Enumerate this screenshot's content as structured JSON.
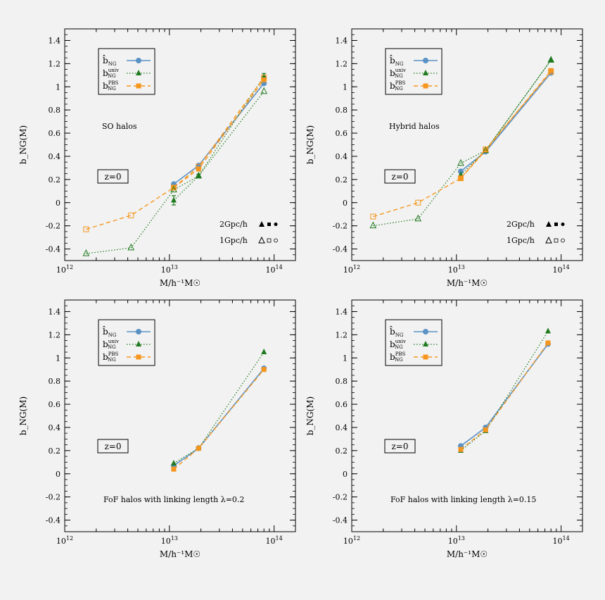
{
  "colors": {
    "hat": "#5b92c6",
    "univ": "#1f7a1f",
    "pbs": "#f5961e",
    "axis": "#000000",
    "background": "#f2f2f2"
  },
  "legend_labels": {
    "hat": {
      "base": "b̂",
      "sub": "NG",
      "sup": ""
    },
    "univ": {
      "base": "b",
      "sub": "NG",
      "sup": "univ"
    },
    "pbs": {
      "base": "b",
      "sub": "NG",
      "sup": "PBS"
    }
  },
  "axis_labels": {
    "x": "M/h⁻¹M☉",
    "y": "b_NG(M)"
  },
  "chart_data": [
    {
      "type": "line",
      "panel": "top-left",
      "title": "SO halos",
      "redshift_label": "z=0",
      "box_sizes": {
        "large": "2Gpc/h",
        "small": "1Gpc/h"
      },
      "x_scale": "log",
      "xlim": [
        1000000000000.0,
        160000000000000.0
      ],
      "ylim": [
        -0.5,
        1.5
      ],
      "x_tick_labels": [
        "10^12",
        "10^13",
        "10^14"
      ],
      "y_tick_labels": [
        "-0.4",
        "-0.2",
        "0",
        "0.2",
        "0.4",
        "0.6",
        "0.8",
        "1",
        "1.2",
        "1.4"
      ],
      "series": [
        {
          "name": "hat",
          "style": "solid",
          "marker": "circle",
          "x": [
            11000000000000.0,
            19000000000000.0,
            80000000000000.0
          ],
          "y": [
            0.16,
            0.32,
            1.03
          ]
        },
        {
          "name": "univ",
          "style": "dotted",
          "marker": "triangle",
          "x": [
            11000000000000.0,
            19000000000000.0,
            80000000000000.0
          ],
          "y": [
            0.02,
            0.23,
            1.09
          ],
          "err": [
            0.04,
            0.015,
            0.025
          ]
        },
        {
          "name": "pbs",
          "style": "dashed",
          "marker": "square",
          "x": [
            11000000000000.0,
            19000000000000.0,
            80000000000000.0
          ],
          "y": [
            0.13,
            0.29,
            1.06
          ]
        },
        {
          "name": "univ_small",
          "style": "dotted",
          "marker": "triangle-open",
          "x": [
            1600000000000.0,
            4300000000000.0,
            11000000000000.0,
            19000000000000.0,
            80000000000000.0
          ],
          "y": [
            -0.44,
            -0.39,
            0.11,
            0.23,
            0.96
          ]
        },
        {
          "name": "pbs_small",
          "style": "dashed",
          "marker": "square-open",
          "x": [
            1600000000000.0,
            4300000000000.0,
            11000000000000.0,
            19000000000000.0,
            80000000000000.0
          ],
          "y": [
            -0.23,
            -0.11,
            0.13,
            0.31,
            1.08
          ]
        }
      ]
    },
    {
      "type": "line",
      "panel": "top-right",
      "title": "Hybrid halos",
      "redshift_label": "z=0",
      "box_sizes": {
        "large": "2Gpc/h",
        "small": "1Gpc/h"
      },
      "x_scale": "log",
      "xlim": [
        1000000000000.0,
        160000000000000.0
      ],
      "ylim": [
        -0.5,
        1.5
      ],
      "x_tick_labels": [
        "10^12",
        "10^13",
        "10^14"
      ],
      "y_tick_labels": [
        "-0.4",
        "-0.2",
        "0",
        "0.2",
        "0.4",
        "0.6",
        "0.8",
        "1",
        "1.2",
        "1.4"
      ],
      "series": [
        {
          "name": "hat",
          "style": "solid",
          "marker": "circle",
          "x": [
            11000000000000.0,
            19000000000000.0,
            80000000000000.0
          ],
          "y": [
            0.27,
            0.44,
            1.12
          ]
        },
        {
          "name": "univ",
          "style": "dotted",
          "marker": "triangle",
          "x": [
            11000000000000.0,
            19000000000000.0,
            80000000000000.0
          ],
          "y": [
            0.24,
            0.45,
            1.23
          ]
        },
        {
          "name": "pbs",
          "style": "dashed",
          "marker": "square",
          "x": [
            11000000000000.0,
            19000000000000.0,
            80000000000000.0
          ],
          "y": [
            0.21,
            0.45,
            1.14
          ]
        },
        {
          "name": "univ_small",
          "style": "dotted",
          "marker": "triangle-open",
          "x": [
            1600000000000.0,
            4300000000000.0,
            11000000000000.0,
            19000000000000.0,
            80000000000000.0
          ],
          "y": [
            -0.2,
            -0.14,
            0.34,
            0.45,
            1.23
          ]
        },
        {
          "name": "pbs_small",
          "style": "dashed",
          "marker": "square-open",
          "x": [
            1600000000000.0,
            4300000000000.0,
            11000000000000.0,
            19000000000000.0,
            80000000000000.0
          ],
          "y": [
            -0.12,
            0.0,
            0.21,
            0.46,
            1.13
          ]
        }
      ]
    },
    {
      "type": "line",
      "panel": "bottom-left",
      "title": "FoF halos with linking length λ=0.2",
      "redshift_label": "z=0",
      "x_scale": "log",
      "xlim": [
        1000000000000.0,
        160000000000000.0
      ],
      "ylim": [
        -0.5,
        1.5
      ],
      "x_tick_labels": [
        "10^12",
        "10^13",
        "10^14"
      ],
      "y_tick_labels": [
        "-0.4",
        "-0.2",
        "0",
        "0.2",
        "0.4",
        "0.6",
        "0.8",
        "1",
        "1.2",
        "1.4"
      ],
      "series": [
        {
          "name": "hat",
          "style": "solid",
          "marker": "circle",
          "x": [
            11000000000000.0,
            19000000000000.0,
            80000000000000.0
          ],
          "y": [
            0.07,
            0.22,
            0.91
          ]
        },
        {
          "name": "univ",
          "style": "dotted",
          "marker": "triangle",
          "x": [
            11000000000000.0,
            19000000000000.0,
            80000000000000.0
          ],
          "y": [
            0.09,
            0.22,
            1.05
          ]
        },
        {
          "name": "pbs",
          "style": "dashed",
          "marker": "square",
          "x": [
            11000000000000.0,
            19000000000000.0,
            80000000000000.0
          ],
          "y": [
            0.04,
            0.22,
            0.9
          ]
        }
      ]
    },
    {
      "type": "line",
      "panel": "bottom-right",
      "title": "FoF halos with linking length λ=0.15",
      "redshift_label": "z=0",
      "x_scale": "log",
      "xlim": [
        1000000000000.0,
        160000000000000.0
      ],
      "ylim": [
        -0.5,
        1.5
      ],
      "x_tick_labels": [
        "10^12",
        "10^13",
        "10^14"
      ],
      "y_tick_labels": [
        "-0.4",
        "-0.2",
        "0",
        "0.2",
        "0.4",
        "0.6",
        "0.8",
        "1",
        "1.2",
        "1.4"
      ],
      "series": [
        {
          "name": "hat",
          "style": "solid",
          "marker": "circle",
          "x": [
            11000000000000.0,
            19000000000000.0,
            75000000000000.0
          ],
          "y": [
            0.24,
            0.4,
            1.12
          ]
        },
        {
          "name": "univ",
          "style": "dotted",
          "marker": "triangle",
          "x": [
            11000000000000.0,
            19000000000000.0,
            75000000000000.0
          ],
          "y": [
            0.2,
            0.37,
            1.23
          ]
        },
        {
          "name": "pbs",
          "style": "dashed",
          "marker": "square",
          "x": [
            11000000000000.0,
            19000000000000.0,
            75000000000000.0
          ],
          "y": [
            0.21,
            0.38,
            1.13
          ]
        }
      ]
    }
  ]
}
